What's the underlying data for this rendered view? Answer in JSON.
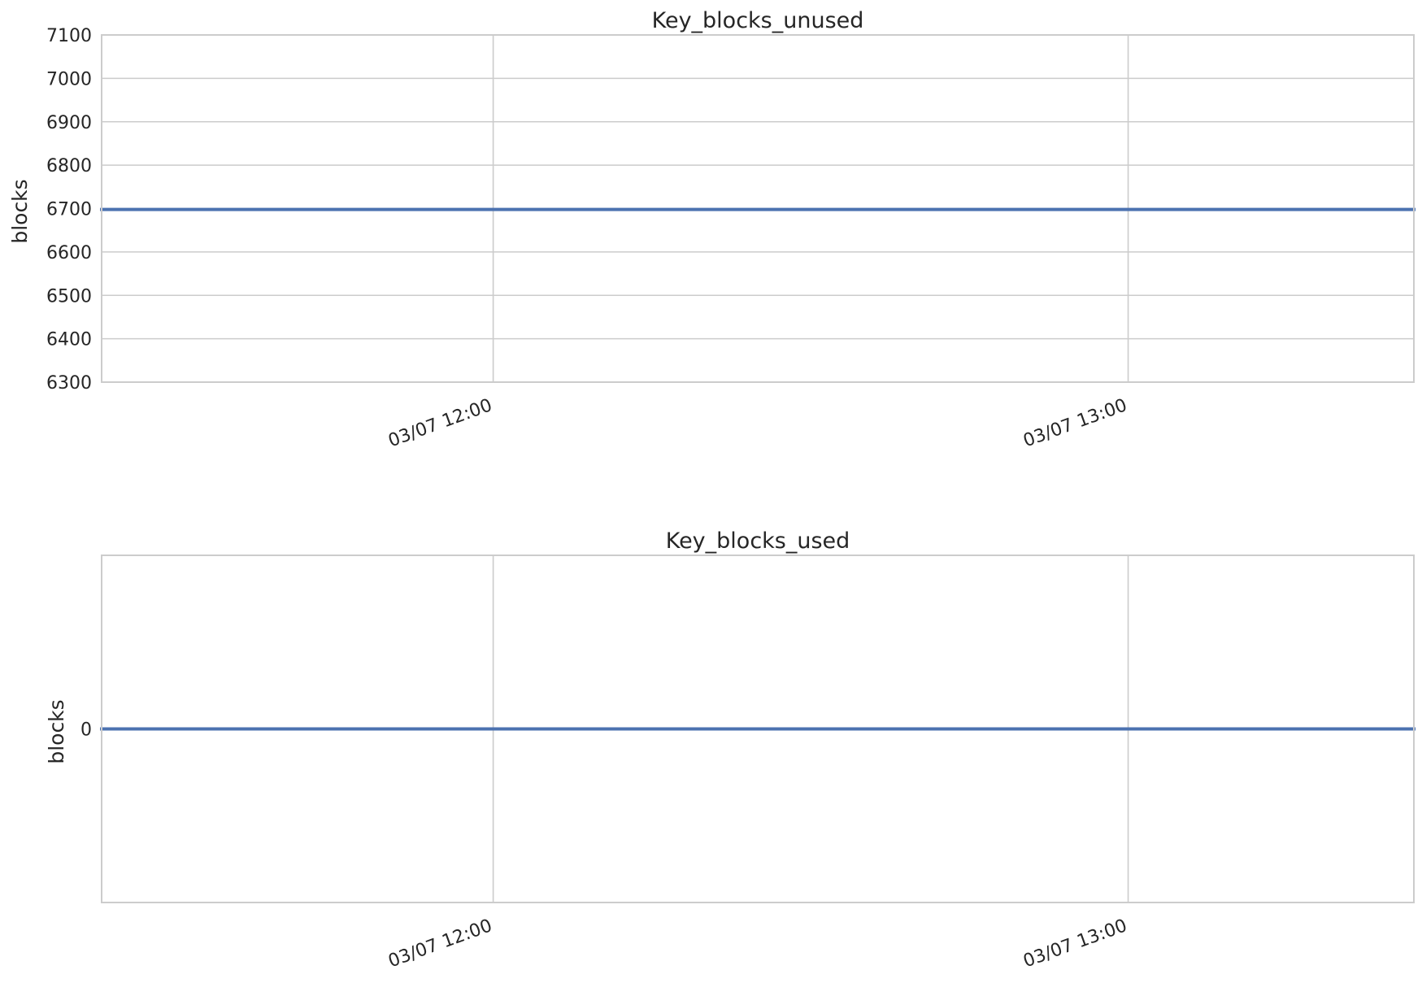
{
  "chart_data": [
    {
      "type": "line",
      "title": "Key_blocks_unused",
      "xlabel": "",
      "ylabel": "blocks",
      "ylim": [
        6300,
        7100
      ],
      "yticks": [
        6300,
        6400,
        6500,
        6600,
        6700,
        6800,
        6900,
        7000,
        7100
      ],
      "xlim": [
        "2024-03-07T11:23",
        "2024-03-07T13:27"
      ],
      "xticks": [
        "2024-03-07T12:00",
        "2024-03-07T13:00"
      ],
      "xtick_labels": [
        "03/07 12:00",
        "03/07 13:00"
      ],
      "grid": true,
      "series": [
        {
          "color": "#4c72b0",
          "x": [
            "2024-03-07T11:23",
            "2024-03-07T13:27"
          ],
          "values": [
            6698,
            6698
          ]
        }
      ]
    },
    {
      "type": "line",
      "title": "Key_blocks_used",
      "xlabel": "",
      "ylabel": "blocks",
      "ylim": [
        -0.5,
        0.5
      ],
      "yticks": [
        0
      ],
      "xlim": [
        "2024-03-07T11:23",
        "2024-03-07T13:27"
      ],
      "xticks": [
        "2024-03-07T12:00",
        "2024-03-07T13:00"
      ],
      "xtick_labels": [
        "03/07 12:00",
        "03/07 13:00"
      ],
      "grid": true,
      "series": [
        {
          "color": "#4c72b0",
          "x": [
            "2024-03-07T11:23",
            "2024-03-07T13:27"
          ],
          "values": [
            0,
            0
          ]
        }
      ]
    }
  ]
}
